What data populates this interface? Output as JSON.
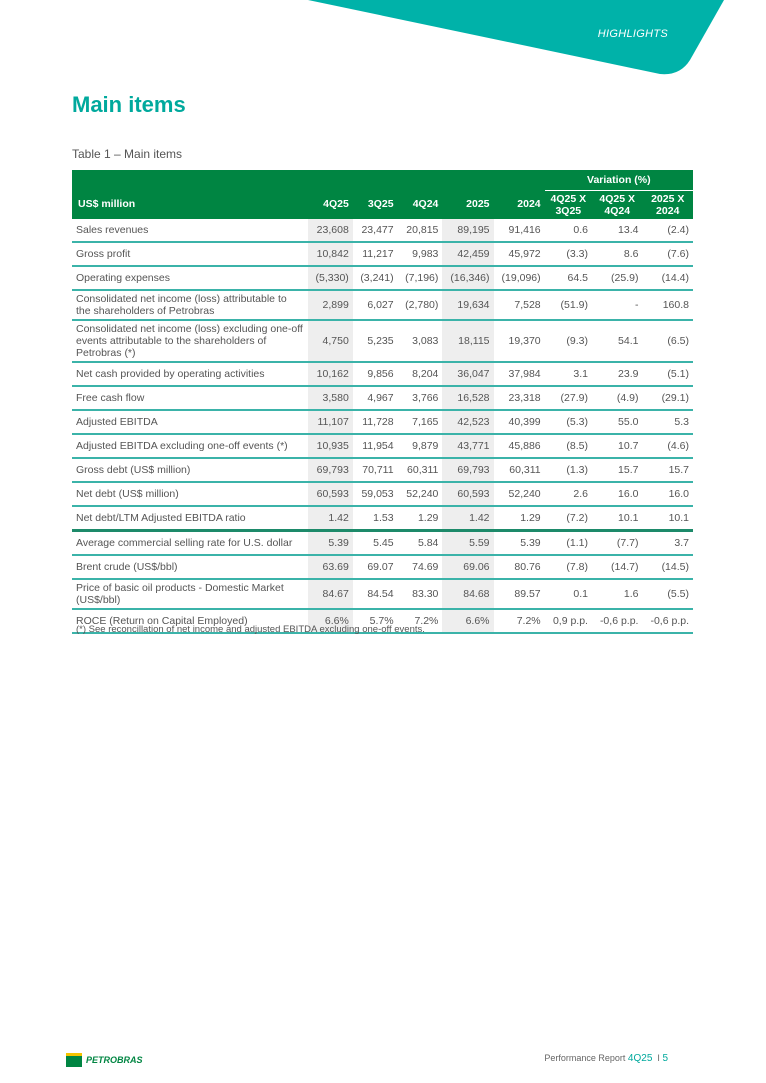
{
  "header": {
    "section": "HIGHLIGHTS",
    "accent": "#00b2a9"
  },
  "title": "Main items",
  "caption": "Table 1 – Main items",
  "table": {
    "unit_header": "US$ million",
    "variation_header": "Variation (%)",
    "columns": [
      "4Q25",
      "3Q25",
      "4Q24",
      "2025",
      "2024"
    ],
    "var_columns": [
      [
        "4Q25 X",
        "3Q25"
      ],
      [
        "4Q25 X",
        "4Q24"
      ],
      [
        "2025 X",
        "2024"
      ]
    ],
    "rows": [
      [
        "Sales revenues",
        "23,608",
        "23,477",
        "20,815",
        "89,195",
        "91,416",
        "0.6",
        "13.4",
        "(2.4)"
      ],
      [
        "Gross profit",
        "10,842",
        "11,217",
        "9,983",
        "42,459",
        "45,972",
        "(3.3)",
        "8.6",
        "(7.6)"
      ],
      [
        "Operating expenses",
        "(5,330)",
        "(3,241)",
        "(7,196)",
        "(16,346)",
        "(19,096)",
        "64.5",
        "(25.9)",
        "(14.4)"
      ],
      [
        "Consolidated net income (loss) attributable to the shareholders of Petrobras",
        "2,899",
        "6,027",
        "(2,780)",
        "19,634",
        "7,528",
        "(51.9)",
        "-",
        "160.8"
      ],
      [
        "Consolidated net income (loss) excluding one-off events attributable to the shareholders of Petrobras (*)",
        "4,750",
        "5,235",
        "3,083",
        "18,115",
        "19,370",
        "(9.3)",
        "54.1",
        "(6.5)"
      ],
      [
        "Net cash provided by operating activities",
        "10,162",
        "9,856",
        "8,204",
        "36,047",
        "37,984",
        "3.1",
        "23.9",
        "(5.1)"
      ],
      [
        "Free cash flow",
        "3,580",
        "4,967",
        "3,766",
        "16,528",
        "23,318",
        "(27.9)",
        "(4.9)",
        "(29.1)"
      ],
      [
        "Adjusted EBITDA",
        "11,107",
        "11,728",
        "7,165",
        "42,523",
        "40,399",
        "(5.3)",
        "55.0",
        "5.3"
      ],
      [
        "Adjusted EBITDA excluding one-off events (*)",
        "10,935",
        "11,954",
        "9,879",
        "43,771",
        "45,886",
        "(8.5)",
        "10.7",
        "(4.6)"
      ],
      [
        "Gross debt (US$ million)",
        "69,793",
        "70,711",
        "60,311",
        "69,793",
        "60,311",
        "(1.3)",
        "15.7",
        "15.7"
      ],
      [
        "Net debt (US$ million)",
        "60,593",
        "59,053",
        "52,240",
        "60,593",
        "52,240",
        "2.6",
        "16.0",
        "16.0"
      ],
      [
        "Net debt/LTM Adjusted EBITDA ratio",
        "1.42",
        "1.53",
        "1.29",
        "1.42",
        "1.29",
        "(7.2)",
        "10.1",
        "10.1"
      ],
      [
        "Average commercial selling rate for U.S. dollar",
        "5.39",
        "5.45",
        "5.84",
        "5.59",
        "5.39",
        "(1.1)",
        "(7.7)",
        "3.7"
      ],
      [
        "Brent crude (US$/bbl)",
        "63.69",
        "69.07",
        "74.69",
        "69.06",
        "80.76",
        "(7.8)",
        "(14.7)",
        "(14.5)"
      ],
      [
        "Price of basic oil products - Domestic Market (US$/bbl)",
        "84.67",
        "84.54",
        "83.30",
        "84.68",
        "89.57",
        "0.1",
        "1.6",
        "(5.5)"
      ],
      [
        "ROCE (Return on Capital Employed)",
        "6.6%",
        "5.7%",
        "7.2%",
        "6.6%",
        "7.2%",
        "0,9 p.p.",
        "-0,6 p.p.",
        "-0,6 p.p."
      ]
    ]
  },
  "footnote": "(*) See reconcillation of net income and adjusted EBITDA excluding one-off events.",
  "footer": {
    "logo": "PETROBRAS",
    "report": "Performance Report",
    "quarter": "4Q25",
    "separator": "I",
    "page": "5"
  }
}
